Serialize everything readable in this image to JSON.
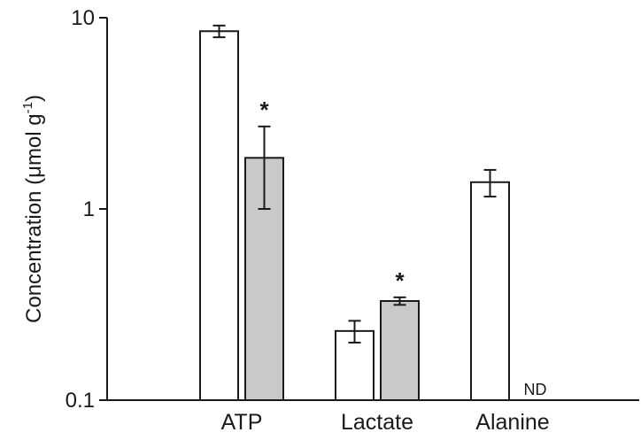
{
  "chart_data": {
    "type": "bar",
    "scale": "log",
    "ylabel_main": "Concentration (μmol g",
    "ylabel_sup": "-1",
    "ylabel_close": ")",
    "yticks": [
      {
        "value": 10,
        "label": "10"
      },
      {
        "value": 1,
        "label": "1"
      },
      {
        "value": 0.1,
        "label": "0.1"
      }
    ],
    "ylim": [
      0.1,
      10
    ],
    "categories": [
      "ATP",
      "Lactate",
      "Alanine"
    ],
    "series": [
      {
        "fill": "#ffffff",
        "values": [
          8.5,
          0.23,
          1.38
        ],
        "errors": [
          0.6,
          0.03,
          0.22
        ],
        "marks": [
          "",
          "",
          ""
        ]
      },
      {
        "fill": "#c9c9c9",
        "values": [
          1.85,
          0.33,
          null
        ],
        "errors": [
          0.85,
          0.015,
          null
        ],
        "marks": [
          "*",
          "*",
          "ND"
        ]
      }
    ],
    "grid": false,
    "legend": "none"
  }
}
